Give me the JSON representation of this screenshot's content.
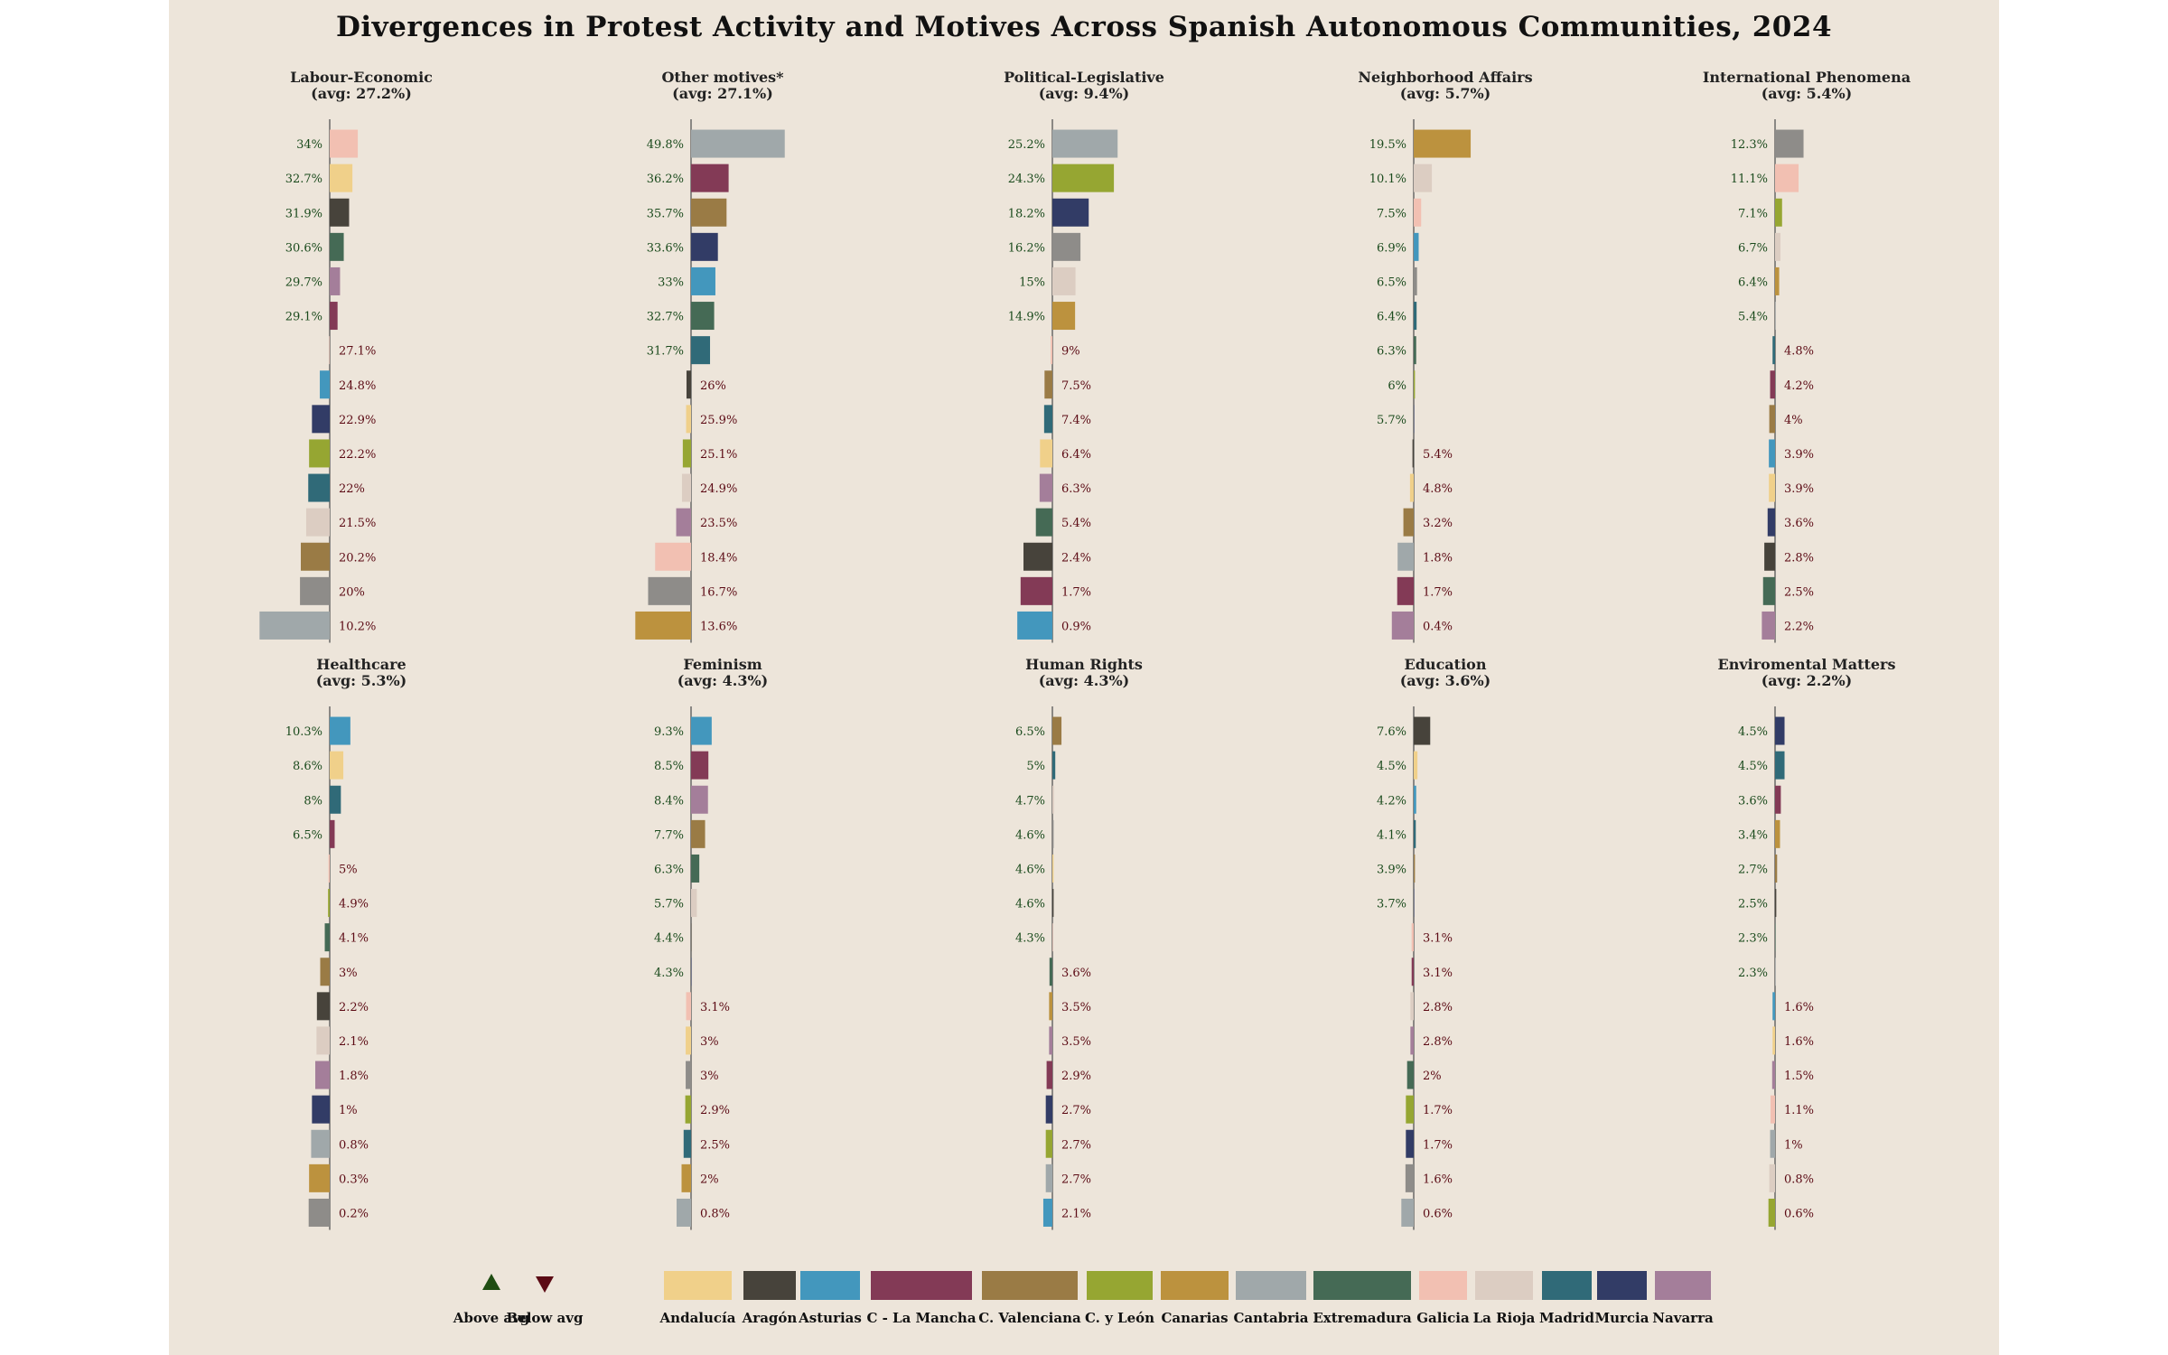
{
  "title": "Divergences in Protest Activity and Motives Across Spanish Autonomous Communities, 2024",
  "colors": {
    "Andalucía": "#f0d08a",
    "Aragón": "#47433b",
    "Asturias": "#4397bd",
    "C - La Mancha": "#833a56",
    "C. Valenciana": "#9a7b45",
    "C. y León": "#96a632",
    "Canarias": "#bc923e",
    "Cantabria": "#a0a8aa",
    "Extremadura": "#456a55",
    "Galicia": "#f2c0b2",
    "La Rioja": "#dccdc2",
    "Madrid": "#306a78",
    "Murcia": "#323c66",
    "Navarra": "#a47e9a",
    "Gray": "#8e8c89",
    "above_text": "#1a4a1c",
    "below_text": "#5b0a14"
  },
  "legend": {
    "above_label": "Above avg",
    "below_label": "Below avg",
    "regions": [
      "Andalucía",
      "Aragón",
      "Asturias",
      "C - La Mancha",
      "C. Valenciana",
      "C. y León",
      "Canarias",
      "Cantabria",
      "Extremadura",
      "Galicia",
      "La Rioja",
      "Madrid",
      "Murcia",
      "Navarra"
    ]
  },
  "chart_data": [
    {
      "type": "bar",
      "title": "Labour-Economic",
      "subtitle": "(avg: 27.2%)",
      "average": 27.2,
      "labels": [
        "34%",
        "32.7%",
        "31.9%",
        "30.6%",
        "29.7%",
        "29.1%",
        "27.1%",
        "24.8%",
        "22.9%",
        "22.2%",
        "22%",
        "21.5%",
        "20.2%",
        "20%",
        "10.2%"
      ],
      "values": [
        34,
        32.7,
        31.9,
        30.6,
        29.7,
        29.1,
        27.1,
        24.8,
        22.9,
        22.2,
        22,
        21.5,
        20.2,
        20,
        10.2
      ],
      "colors": [
        "Galicia",
        "Andalucía",
        "Aragón",
        "Extremadura",
        "Navarra",
        "C - La Mancha",
        "Galicia",
        "Asturias",
        "Murcia",
        "C. y León",
        "Madrid",
        "La Rioja",
        "C. Valenciana",
        "Gray",
        "Cantabria"
      ]
    },
    {
      "type": "bar",
      "title": "Other motives*",
      "subtitle": "(avg: 27.1%)",
      "average": 27.1,
      "labels": [
        "49.8%",
        "36.2%",
        "35.7%",
        "33.6%",
        "33%",
        "32.7%",
        "31.7%",
        "26%",
        "25.9%",
        "25.1%",
        "24.9%",
        "23.5%",
        "18.4%",
        "16.7%",
        "13.6%"
      ],
      "values": [
        49.8,
        36.2,
        35.7,
        33.6,
        33,
        32.7,
        31.7,
        26,
        25.9,
        25.1,
        24.9,
        23.5,
        18.4,
        16.7,
        13.6
      ],
      "colors": [
        "Cantabria",
        "C - La Mancha",
        "C. Valenciana",
        "Murcia",
        "Asturias",
        "Extremadura",
        "Madrid",
        "Aragón",
        "Andalucía",
        "C. y León",
        "La Rioja",
        "Navarra",
        "Galicia",
        "Gray",
        "Canarias"
      ]
    },
    {
      "type": "bar",
      "title": "Political-Legislative",
      "subtitle": "(avg: 9.4%)",
      "average": 9.4,
      "labels": [
        "25.2%",
        "24.3%",
        "18.2%",
        "16.2%",
        "15%",
        "14.9%",
        "9%",
        "7.5%",
        "7.4%",
        "6.4%",
        "6.3%",
        "5.4%",
        "2.4%",
        "1.7%",
        "0.9%"
      ],
      "values": [
        25.2,
        24.3,
        18.2,
        16.2,
        15,
        14.9,
        9,
        7.5,
        7.4,
        6.4,
        6.3,
        5.4,
        2.4,
        1.7,
        0.9
      ],
      "colors": [
        "Cantabria",
        "C. y León",
        "Murcia",
        "Gray",
        "La Rioja",
        "Canarias",
        "Galicia",
        "C. Valenciana",
        "Madrid",
        "Andalucía",
        "Navarra",
        "Extremadura",
        "Aragón",
        "C - La Mancha",
        "Asturias"
      ]
    },
    {
      "type": "bar",
      "title": "Neighborhood Affairs",
      "subtitle": "(avg: 5.7%)",
      "average": 5.7,
      "labels": [
        "19.5%",
        "10.1%",
        "7.5%",
        "6.9%",
        "6.5%",
        "6.4%",
        "6.3%",
        "6%",
        "5.7%",
        "5.4%",
        "4.8%",
        "3.2%",
        "1.8%",
        "1.7%",
        "0.4%"
      ],
      "values": [
        19.5,
        10.1,
        7.5,
        6.9,
        6.5,
        6.4,
        6.3,
        6,
        5.7,
        5.4,
        4.8,
        3.2,
        1.8,
        1.7,
        0.4
      ],
      "colors": [
        "Canarias",
        "La Rioja",
        "Galicia",
        "Asturias",
        "Gray",
        "Madrid",
        "Extremadura",
        "C. y León",
        "Murcia",
        "Aragón",
        "Andalucía",
        "C. Valenciana",
        "Cantabria",
        "C - La Mancha",
        "Navarra"
      ]
    },
    {
      "type": "bar",
      "title": "International Phenomena",
      "subtitle": "(avg: 5.4%)",
      "average": 5.4,
      "labels": [
        "12.3%",
        "11.1%",
        "7.1%",
        "6.7%",
        "6.4%",
        "5.4%",
        "4.8%",
        "4.2%",
        "4%",
        "3.9%",
        "3.9%",
        "3.6%",
        "2.8%",
        "2.5%",
        "2.2%"
      ],
      "values": [
        12.3,
        11.1,
        7.1,
        6.7,
        6.4,
        5.4,
        4.8,
        4.2,
        4,
        3.9,
        3.9,
        3.6,
        2.8,
        2.5,
        2.2
      ],
      "colors": [
        "Gray",
        "Galicia",
        "C. y León",
        "La Rioja",
        "Canarias",
        "Cantabria",
        "Madrid",
        "C - La Mancha",
        "C. Valenciana",
        "Asturias",
        "Andalucía",
        "Murcia",
        "Aragón",
        "Extremadura",
        "Navarra"
      ]
    },
    {
      "type": "bar",
      "title": "Healthcare",
      "subtitle": "(avg: 5.3%)",
      "average": 5.3,
      "labels": [
        "10.3%",
        "8.6%",
        "8%",
        "6.5%",
        "5%",
        "4.9%",
        "4.1%",
        "3%",
        "2.2%",
        "2.1%",
        "1.8%",
        "1%",
        "0.8%",
        "0.3%",
        "0.2%"
      ],
      "values": [
        10.3,
        8.6,
        8,
        6.5,
        5,
        4.9,
        4.1,
        3,
        2.2,
        2.1,
        1.8,
        1,
        0.8,
        0.3,
        0.2
      ],
      "colors": [
        "Asturias",
        "Andalucía",
        "Madrid",
        "C - La Mancha",
        "Galicia",
        "C. y León",
        "Extremadura",
        "C. Valenciana",
        "Aragón",
        "La Rioja",
        "Navarra",
        "Murcia",
        "Cantabria",
        "Canarias",
        "Gray"
      ]
    },
    {
      "type": "bar",
      "title": "Feminism",
      "subtitle": "(avg: 4.3%)",
      "average": 4.3,
      "labels": [
        "9.3%",
        "8.5%",
        "8.4%",
        "7.7%",
        "6.3%",
        "5.7%",
        "4.4%",
        "4.3%",
        "3.1%",
        "3%",
        "3%",
        "2.9%",
        "2.5%",
        "2%",
        "0.8%"
      ],
      "values": [
        9.3,
        8.5,
        8.4,
        7.7,
        6.3,
        5.7,
        4.4,
        4.3,
        3.1,
        3,
        3,
        2.9,
        2.5,
        2,
        0.8
      ],
      "colors": [
        "Asturias",
        "C - La Mancha",
        "Navarra",
        "C. Valenciana",
        "Extremadura",
        "La Rioja",
        "Aragón",
        "Murcia",
        "Galicia",
        "Andalucía",
        "Gray",
        "C. y León",
        "Madrid",
        "Canarias",
        "Cantabria"
      ]
    },
    {
      "type": "bar",
      "title": "Human Rights",
      "subtitle": "(avg: 4.3%)",
      "average": 4.3,
      "labels": [
        "6.5%",
        "5%",
        "4.7%",
        "4.6%",
        "4.6%",
        "4.6%",
        "4.3%",
        "3.6%",
        "3.5%",
        "3.5%",
        "2.9%",
        "2.7%",
        "2.7%",
        "2.7%",
        "2.1%"
      ],
      "values": [
        6.5,
        5,
        4.7,
        4.6,
        4.6,
        4.6,
        4.3,
        3.6,
        3.5,
        3.5,
        2.9,
        2.7,
        2.7,
        2.7,
        2.1
      ],
      "colors": [
        "C. Valenciana",
        "Madrid",
        "La Rioja",
        "Gray",
        "Andalucía",
        "Aragón",
        "Galicia",
        "Extremadura",
        "Canarias",
        "Navarra",
        "C - La Mancha",
        "Murcia",
        "C. y León",
        "Cantabria",
        "Asturias"
      ]
    },
    {
      "type": "bar",
      "title": "Education",
      "subtitle": "(avg: 3.6%)",
      "average": 3.6,
      "labels": [
        "7.6%",
        "4.5%",
        "4.2%",
        "4.1%",
        "3.9%",
        "3.7%",
        "3.1%",
        "3.1%",
        "2.8%",
        "2.8%",
        "2%",
        "1.7%",
        "1.7%",
        "1.6%",
        "0.6%"
      ],
      "values": [
        7.6,
        4.5,
        4.2,
        4.1,
        3.9,
        3.7,
        3.1,
        3.1,
        2.8,
        2.8,
        2,
        1.7,
        1.7,
        1.6,
        0.6
      ],
      "colors": [
        "Aragón",
        "Andalucía",
        "Asturias",
        "Madrid",
        "C. Valenciana",
        "Murcia",
        "Galicia",
        "C - La Mancha",
        "La Rioja",
        "Navarra",
        "Extremadura",
        "C. y León",
        "Murcia",
        "Gray",
        "Cantabria"
      ]
    },
    {
      "type": "bar",
      "title": "Enviromental Matters",
      "subtitle": "(avg: 2.2%)",
      "average": 2.2,
      "labels": [
        "4.5%",
        "4.5%",
        "3.6%",
        "3.4%",
        "2.7%",
        "2.5%",
        "2.3%",
        "2.3%",
        "1.6%",
        "1.6%",
        "1.5%",
        "1.1%",
        "1%",
        "0.8%",
        "0.6%"
      ],
      "values": [
        4.5,
        4.5,
        3.6,
        3.4,
        2.7,
        2.5,
        2.3,
        2.3,
        1.6,
        1.6,
        1.5,
        1.1,
        1,
        0.8,
        0.6
      ],
      "colors": [
        "Murcia",
        "Madrid",
        "C - La Mancha",
        "Canarias",
        "C. Valenciana",
        "Aragón",
        "Extremadura",
        "Cantabria",
        "Asturias",
        "Andalucía",
        "Navarra",
        "Galicia",
        "Cantabria",
        "La Rioja",
        "C. y León"
      ]
    }
  ]
}
